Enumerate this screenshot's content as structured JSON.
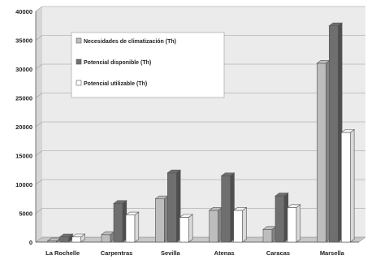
{
  "chart_data": {
    "type": "bar",
    "title": "",
    "xlabel": "",
    "ylabel": "",
    "ylim": [
      0,
      40000
    ],
    "yticks": [
      "0",
      "5000",
      "10000",
      "15000",
      "20000",
      "25000",
      "30000",
      "35000",
      "40000"
    ],
    "grid": true,
    "legend_position": "top-left",
    "style": "3d-clustered-bar",
    "categories": [
      "La Rochelle",
      "Carpentras",
      "Sevilla",
      "Atenas",
      "Caracas",
      "Marsella"
    ],
    "series": [
      {
        "name": "Necesidades de climatización (Th)",
        "color": "#bdbdbd",
        "values": [
          200,
          1300,
          7500,
          5500,
          2200,
          31000
        ]
      },
      {
        "name": "Potencial disponible (Th)",
        "color": "#6f6f6f",
        "values": [
          900,
          6700,
          12000,
          11500,
          8000,
          37500
        ]
      },
      {
        "name": "Potencial utilizable (Th)",
        "color": "#ffffff",
        "values": [
          900,
          4700,
          4300,
          5500,
          6000,
          19000
        ]
      }
    ]
  }
}
